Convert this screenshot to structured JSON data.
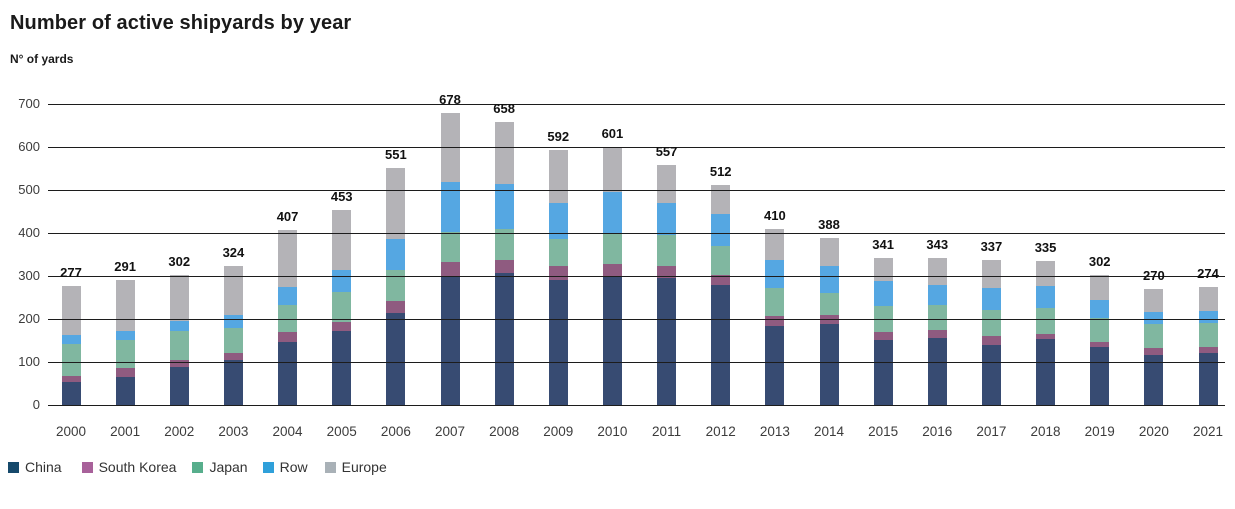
{
  "header": {
    "title": "Number of active shipyards by year",
    "ylabel": "N° of yards"
  },
  "chart_data": {
    "type": "bar",
    "stacked": true,
    "title": "Number of active shipyards by year",
    "ylabel": "N° of yards",
    "xlabel": "",
    "ylim": [
      0,
      700
    ],
    "ytick_step": 100,
    "grid": "horizontal",
    "legend_position": "bottom",
    "categories": [
      "2000",
      "2001",
      "2002",
      "2003",
      "2004",
      "2005",
      "2006",
      "2007",
      "2008",
      "2009",
      "2010",
      "2011",
      "2012",
      "2013",
      "2014",
      "2015",
      "2016",
      "2017",
      "2018",
      "2019",
      "2020",
      "2021"
    ],
    "totals": [
      277,
      291,
      302,
      324,
      407,
      453,
      551,
      678,
      658,
      592,
      601,
      557,
      512,
      410,
      388,
      341,
      343,
      337,
      335,
      302,
      270,
      274
    ],
    "series": [
      {
        "name": "China",
        "color": "#374B72",
        "legend_color": "#16496B",
        "values": [
          53,
          66,
          88,
          104,
          147,
          172,
          215,
          300,
          306,
          290,
          300,
          296,
          280,
          184,
          189,
          152,
          156,
          140,
          153,
          136,
          116,
          120
        ]
      },
      {
        "name": "South Korea",
        "color": "#8F5B80",
        "legend_color": "#A8619A",
        "values": [
          14,
          20,
          16,
          16,
          22,
          21,
          27,
          33,
          31,
          34,
          28,
          28,
          23,
          23,
          20,
          18,
          18,
          20,
          11,
          11,
          16,
          14
        ]
      },
      {
        "name": "Japan",
        "color": "#80B7A0",
        "legend_color": "#57AE8C",
        "values": [
          74,
          66,
          67,
          60,
          64,
          69,
          73,
          70,
          72,
          62,
          71,
          72,
          67,
          66,
          51,
          61,
          58,
          61,
          62,
          56,
          57,
          57
        ]
      },
      {
        "name": "Row",
        "color": "#55A7E2",
        "legend_color": "#2FA0DA",
        "values": [
          22,
          20,
          24,
          30,
          41,
          51,
          71,
          115,
          105,
          84,
          96,
          74,
          75,
          65,
          64,
          57,
          47,
          50,
          51,
          42,
          28,
          28
        ]
      },
      {
        "name": "Europe",
        "color": "#B4B3B7",
        "legend_color": "#A9B1B7",
        "values": [
          114,
          119,
          107,
          114,
          133,
          140,
          165,
          160,
          144,
          122,
          106,
          87,
          67,
          72,
          64,
          53,
          64,
          66,
          58,
          57,
          53,
          55
        ]
      }
    ]
  }
}
